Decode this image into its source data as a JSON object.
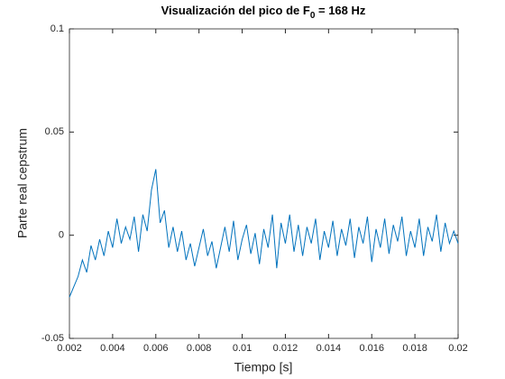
{
  "chart_data": {
    "type": "line",
    "title": [
      "Visualización del pico de F",
      "0",
      " = 168 Hz"
    ],
    "xlabel": "Tiempo [s]",
    "ylabel": "Parte real cepstrum",
    "xlim": [
      0.002,
      0.02
    ],
    "xticks": [
      0.002,
      0.004,
      0.006,
      0.008,
      0.01,
      0.012,
      0.014,
      0.016,
      0.018,
      0.02
    ],
    "ylim": [
      -0.05,
      0.1
    ],
    "yticks": [
      -0.05,
      0,
      0.05,
      0.1
    ],
    "grid": false,
    "x": [
      0.002,
      0.0022,
      0.0024,
      0.0026,
      0.0028,
      0.003,
      0.0032,
      0.0034,
      0.0036,
      0.0038,
      0.004,
      0.0042,
      0.0044,
      0.0046,
      0.0048,
      0.005,
      0.0052,
      0.0054,
      0.0056,
      0.0058,
      0.006,
      0.0062,
      0.0064,
      0.0066,
      0.0068,
      0.007,
      0.0072,
      0.0074,
      0.0076,
      0.0078,
      0.008,
      0.0082,
      0.0084,
      0.0086,
      0.0088,
      0.009,
      0.0092,
      0.0094,
      0.0096,
      0.0098,
      0.01,
      0.0102,
      0.0104,
      0.0106,
      0.0108,
      0.011,
      0.0112,
      0.0114,
      0.0116,
      0.0118,
      0.012,
      0.0122,
      0.0124,
      0.0126,
      0.0128,
      0.013,
      0.0132,
      0.0134,
      0.0136,
      0.0138,
      0.014,
      0.0142,
      0.0144,
      0.0146,
      0.0148,
      0.015,
      0.0152,
      0.0154,
      0.0156,
      0.0158,
      0.016,
      0.0162,
      0.0164,
      0.0166,
      0.0168,
      0.017,
      0.0172,
      0.0174,
      0.0176,
      0.0178,
      0.018,
      0.0182,
      0.0184,
      0.0186,
      0.0188,
      0.019,
      0.0192,
      0.0194,
      0.0196,
      0.0198,
      0.02
    ],
    "series": [
      {
        "color": "#0072bd",
        "values": [
          -0.03,
          -0.025,
          -0.02,
          -0.012,
          -0.018,
          -0.005,
          -0.012,
          -0.002,
          -0.01,
          0.002,
          -0.006,
          0.008,
          -0.004,
          0.004,
          -0.002,
          0.009,
          -0.008,
          0.01,
          0.002,
          0.022,
          0.032,
          0.006,
          0.012,
          -0.006,
          0.004,
          -0.008,
          0.002,
          -0.012,
          -0.004,
          -0.015,
          -0.006,
          0.003,
          -0.01,
          -0.003,
          -0.016,
          -0.006,
          0.004,
          -0.008,
          0.007,
          -0.012,
          -0.002,
          0.005,
          -0.009,
          0.001,
          -0.014,
          0.003,
          -0.006,
          0.01,
          -0.016,
          0.006,
          -0.004,
          0.01,
          -0.008,
          0.005,
          -0.01,
          0.004,
          -0.004,
          0.008,
          -0.012,
          0.002,
          -0.006,
          0.007,
          -0.01,
          0.003,
          -0.005,
          0.008,
          -0.011,
          0.004,
          -0.004,
          0.009,
          -0.013,
          0.003,
          -0.006,
          0.008,
          -0.009,
          0.005,
          -0.003,
          0.009,
          -0.01,
          0.002,
          -0.006,
          0.008,
          -0.01,
          0.004,
          -0.003,
          0.01,
          -0.008,
          0.006,
          -0.004,
          0.002,
          -0.004
        ]
      }
    ]
  }
}
